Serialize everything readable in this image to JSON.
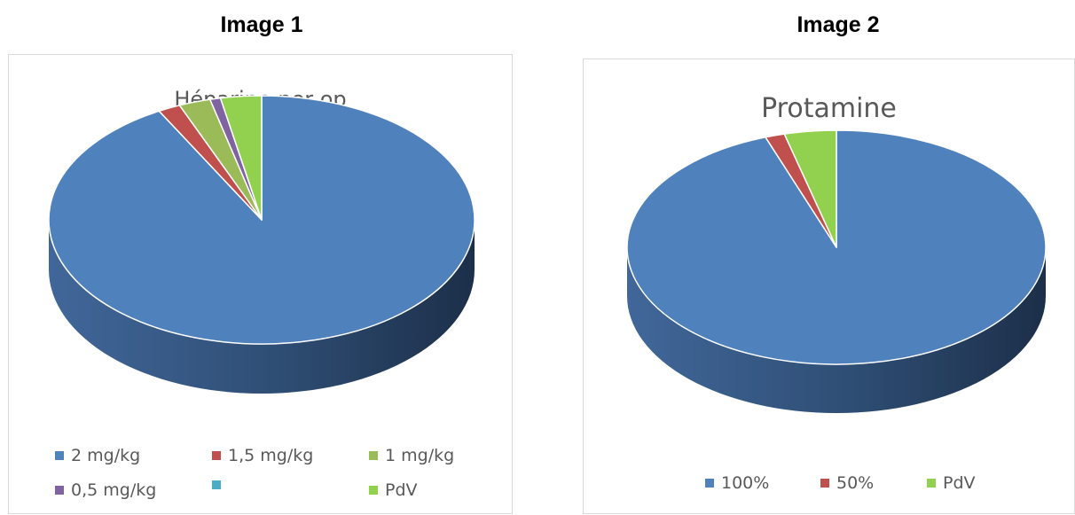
{
  "headings": {
    "left": "Image 1",
    "right": "Image 2"
  },
  "chart_data": [
    {
      "type": "pie",
      "style": "3d",
      "title": "Héparine per op",
      "legend_position": "bottom",
      "slices": [
        {
          "label": "2 mg/kg",
          "value": 92.0,
          "color": "#4f81bd"
        },
        {
          "label": "1,5 mg/kg",
          "value": 1.7,
          "color": "#c0504d"
        },
        {
          "label": "1 mg/kg",
          "value": 2.4,
          "color": "#9bbb59"
        },
        {
          "label": "0,5 mg/kg",
          "value": 0.8,
          "color": "#8064a2"
        },
        {
          "label": "",
          "value": 0.0,
          "color": "#4bacc6"
        },
        {
          "label": "PdV",
          "value": 3.1,
          "color": "#92d050"
        }
      ]
    },
    {
      "type": "pie",
      "style": "3d",
      "title": "Protamine",
      "legend_position": "bottom",
      "slices": [
        {
          "label": "100%",
          "value": 94.5,
          "color": "#4f81bd"
        },
        {
          "label": "50%",
          "value": 1.5,
          "color": "#c0504d"
        },
        {
          "label": "PdV",
          "value": 4.0,
          "color": "#92d050"
        }
      ]
    }
  ]
}
